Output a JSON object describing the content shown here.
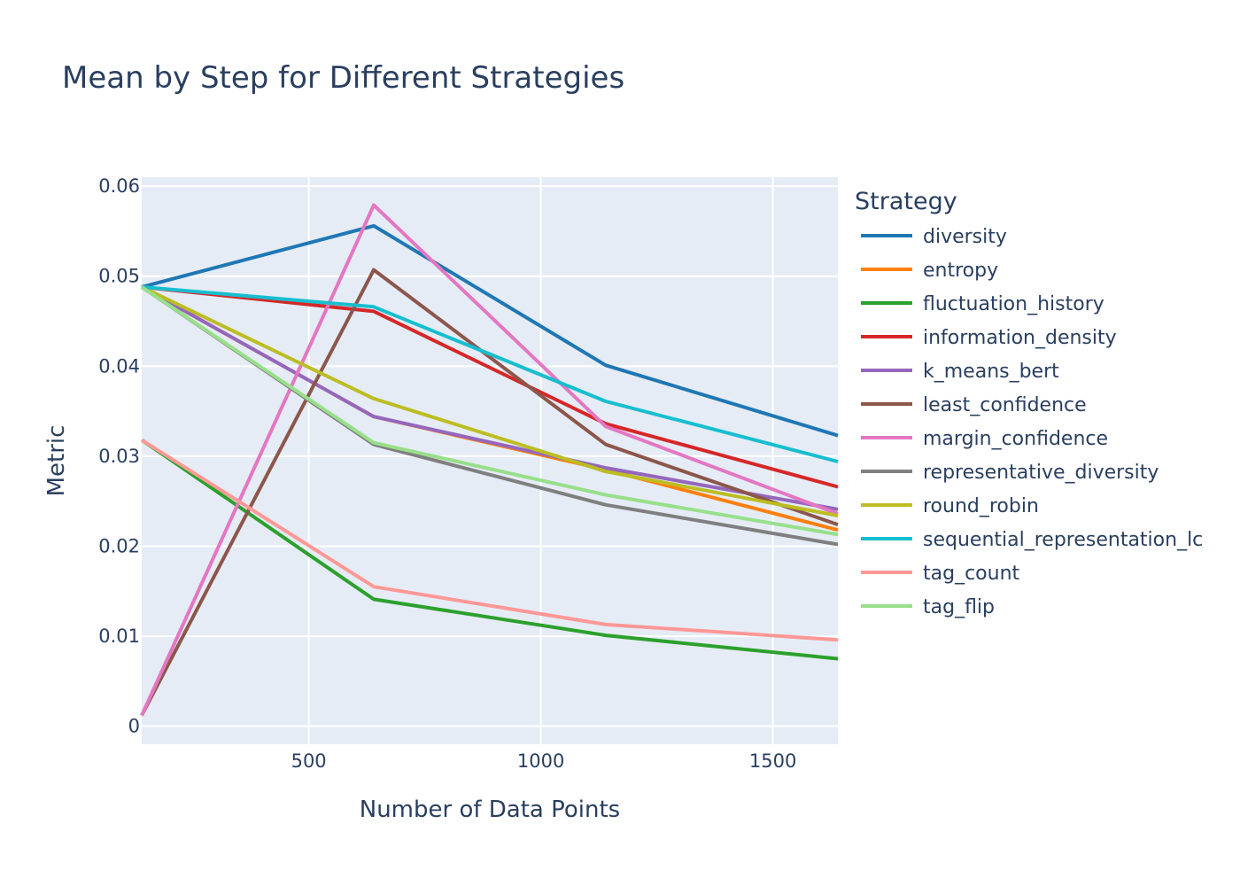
{
  "chart_data": {
    "type": "line",
    "title": "Mean by Step for Different Strategies",
    "xlabel": "Number of Data Points",
    "ylabel": "Metric",
    "xlim": [
      140,
      1640
    ],
    "ylim": [
      -0.002,
      0.061
    ],
    "x_ticks": [
      500,
      1000,
      1500
    ],
    "y_ticks": [
      0,
      0.01,
      0.02,
      0.03,
      0.04,
      0.05,
      0.06
    ],
    "x_tick_labels": [
      "500",
      "1000",
      "1500"
    ],
    "y_tick_labels": [
      "0",
      "0.01",
      "0.02",
      "0.03",
      "0.04",
      "0.05",
      "0.06"
    ],
    "grid": true,
    "plot_bgcolor": "#e5ecf6",
    "legend_title": "Strategy",
    "legend_position": "right",
    "x": [
      140,
      640,
      1140,
      1640
    ],
    "series": [
      {
        "name": "diversity",
        "color": "#1f77b4",
        "values": [
          0.0488,
          0.0556,
          0.0401,
          0.0323
        ]
      },
      {
        "name": "entropy",
        "color": "#ff7f0e",
        "values": [
          0.0488,
          0.0344,
          0.0285,
          0.0218
        ]
      },
      {
        "name": "fluctuation_history",
        "color": "#2ca02c",
        "values": [
          0.0318,
          0.0141,
          0.0101,
          0.0075
        ]
      },
      {
        "name": "information_density",
        "color": "#d62728",
        "values": [
          0.0488,
          0.0461,
          0.0336,
          0.0266
        ]
      },
      {
        "name": "k_means_bert",
        "color": "#9467bd",
        "values": [
          0.0488,
          0.0344,
          0.0287,
          0.0241
        ]
      },
      {
        "name": "least_confidence",
        "color": "#8c564b",
        "values": [
          0.0012,
          0.0507,
          0.0313,
          0.0224
        ]
      },
      {
        "name": "margin_confidence",
        "color": "#e377c2",
        "values": [
          0.0012,
          0.0579,
          0.0333,
          0.0236
        ]
      },
      {
        "name": "representative_diversity",
        "color": "#7f7f7f",
        "values": [
          0.0488,
          0.0313,
          0.0246,
          0.0202
        ]
      },
      {
        "name": "round_robin",
        "color": "#bcbd22",
        "values": [
          0.0488,
          0.0364,
          0.0283,
          0.0234
        ]
      },
      {
        "name": "sequential_representation_lc",
        "color": "#17becf",
        "values": [
          0.0488,
          0.0466,
          0.0361,
          0.0294
        ]
      },
      {
        "name": "tag_count",
        "color": "#ff9896",
        "values": [
          0.0318,
          0.0155,
          0.0113,
          0.0096
        ]
      },
      {
        "name": "tag_flip",
        "color": "#98df8a",
        "values": [
          0.0488,
          0.0315,
          0.0257,
          0.0213
        ]
      }
    ]
  }
}
